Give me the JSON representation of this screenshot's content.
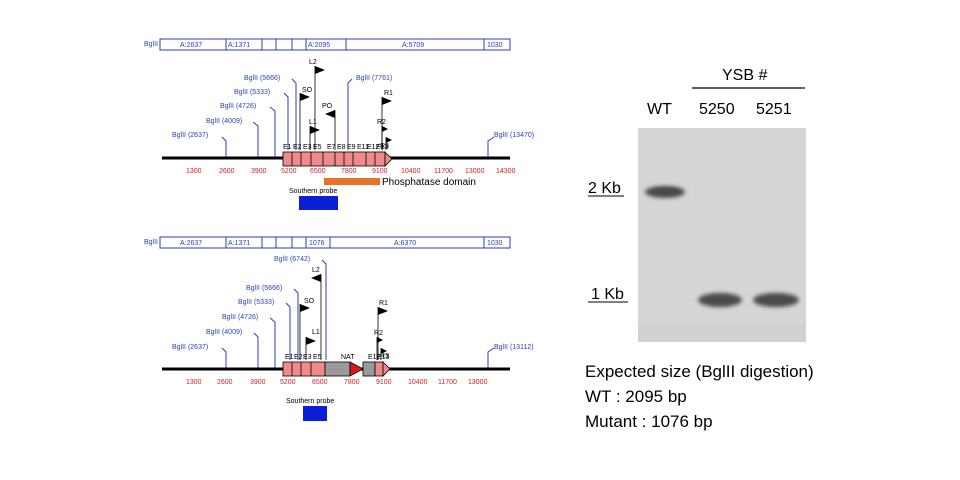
{
  "enzyme": "BglII",
  "wt_map": {
    "fragments": [
      "A:2637",
      "A:1371",
      "A:2095",
      "A:5709",
      "1030"
    ],
    "sites": [
      "BglII (2637)",
      "BglII (4009)",
      "BglII (4726)",
      "BglII (5333)",
      "BglII (5666)",
      "BglII (7761)",
      "BglII (13470)"
    ],
    "ticks": [
      "1300",
      "2600",
      "3900",
      "5200",
      "6500",
      "7800",
      "9100",
      "10400",
      "11700",
      "13000",
      "14300"
    ],
    "exons": [
      "E1",
      "E2",
      "E3",
      "E5",
      "E7",
      "E8",
      "E9",
      "E11",
      "E12",
      "E13"
    ],
    "primers": [
      "L2",
      "SO",
      "PO",
      "L1",
      "R1",
      "R2",
      "R3"
    ],
    "domain_label": "Phosphatase domain",
    "probe_label": "Southern probe"
  },
  "mut_map": {
    "fragments": [
      "A:2637",
      "A:1371",
      "1076",
      "A:6370",
      "1030"
    ],
    "sites": [
      "BglII (2637)",
      "BglII (4009)",
      "BglII (4726)",
      "BglII (5333)",
      "BglII (5666)",
      "BglII (6742)",
      "BglII (13112)"
    ],
    "ticks": [
      "1300",
      "2600",
      "3900",
      "5200",
      "6500",
      "7800",
      "9100",
      "10400",
      "11700",
      "13000"
    ],
    "exons": [
      "E1",
      "E2",
      "E3",
      "E5",
      "E12",
      "E13"
    ],
    "primers": [
      "L2",
      "SO",
      "L1",
      "R1",
      "R2",
      "R3"
    ],
    "marker_label": "NAT",
    "probe_label": "Southern probe"
  },
  "blot": {
    "group_label": "YSB #",
    "lanes": [
      "WT",
      "5250",
      "5251"
    ],
    "markers": [
      "2 Kb",
      "1 Kb"
    ],
    "band_color": "#4a4a4a",
    "background_color": "#d6d6d6"
  },
  "expected": {
    "title": "Expected size (BglII digestion)",
    "wt": "WT : 2095 bp",
    "mutant": "Mutant : 1076 bp"
  }
}
